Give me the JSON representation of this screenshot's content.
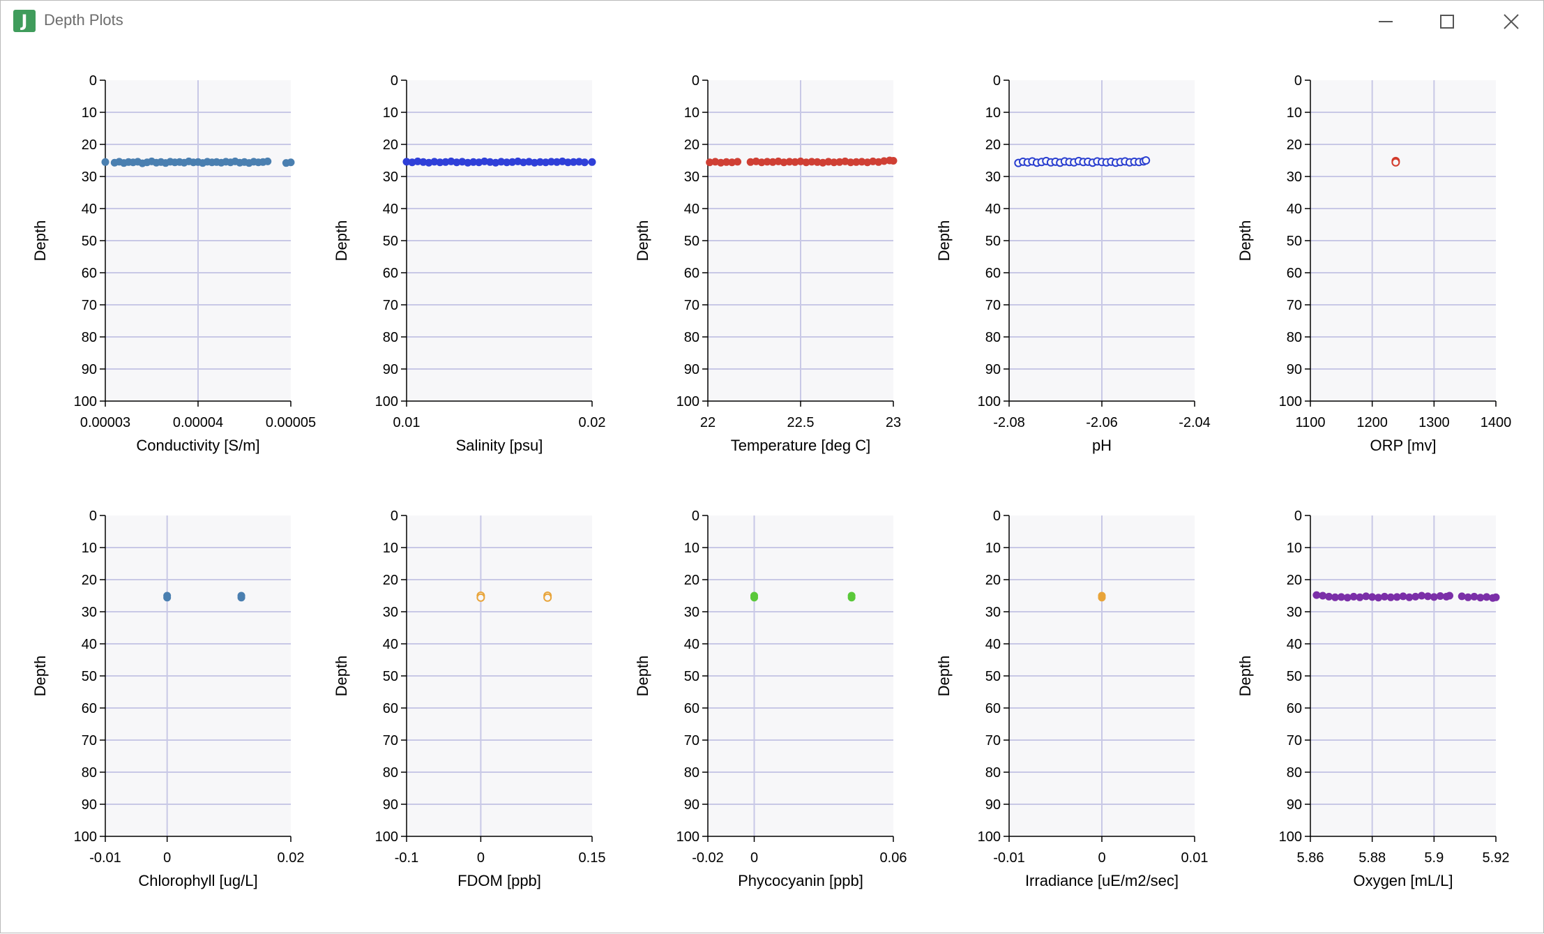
{
  "window": {
    "title": "Depth Plots",
    "icon": "J",
    "controls": [
      "minimize-icon",
      "maximize-icon",
      "close-icon"
    ]
  },
  "colors": {
    "plot_bg": "#f7f7f9",
    "grid": "#c8c8e6",
    "conductivity": "#4a7fb0",
    "salinity": "#2f3fd8",
    "temperature": "#cf3f34",
    "ph": "#2a3fd0",
    "orp": "#d23a2a",
    "chlorophyll": "#4a7fb0",
    "fdom": "#e8a43a",
    "phycocyanin": "#5ac83a",
    "irradiance": "#e8a43a",
    "oxygen": "#7b2fa8"
  },
  "chart_data": [
    {
      "type": "scatter",
      "xlabel": "Conductivity [S/m]",
      "ylabel": "Depth",
      "xlim": [
        3e-05,
        5e-05
      ],
      "xticks": [
        "0.00003",
        "0.00004",
        "0.00005"
      ],
      "ylim": [
        100,
        0
      ],
      "yticks": [
        "0",
        "10",
        "20",
        "30",
        "40",
        "50",
        "60",
        "70",
        "80",
        "90",
        "100"
      ],
      "grid": true,
      "color": "conductivity",
      "marker": "filled",
      "points": [
        [
          3e-05,
          25.5
        ],
        [
          3.1e-05,
          25.7
        ],
        [
          3.15e-05,
          25.4
        ],
        [
          3.2e-05,
          25.8
        ],
        [
          3.25e-05,
          25.5
        ],
        [
          3.3e-05,
          25.6
        ],
        [
          3.35e-05,
          25.4
        ],
        [
          3.4e-05,
          25.9
        ],
        [
          3.45e-05,
          25.6
        ],
        [
          3.5e-05,
          25.3
        ],
        [
          3.55e-05,
          25.7
        ],
        [
          3.6e-05,
          25.5
        ],
        [
          3.65e-05,
          25.8
        ],
        [
          3.7e-05,
          25.4
        ],
        [
          3.75e-05,
          25.6
        ],
        [
          3.8e-05,
          25.5
        ],
        [
          3.85e-05,
          25.7
        ],
        [
          3.9e-05,
          25.3
        ],
        [
          3.95e-05,
          25.6
        ],
        [
          4e-05,
          25.5
        ],
        [
          4.05e-05,
          25.8
        ],
        [
          4.1e-05,
          25.4
        ],
        [
          4.15e-05,
          25.6
        ],
        [
          4.2e-05,
          25.5
        ],
        [
          4.25e-05,
          25.7
        ],
        [
          4.3e-05,
          25.4
        ],
        [
          4.35e-05,
          25.6
        ],
        [
          4.4e-05,
          25.3
        ],
        [
          4.45e-05,
          25.7
        ],
        [
          4.5e-05,
          25.5
        ],
        [
          4.55e-05,
          25.8
        ],
        [
          4.6e-05,
          25.4
        ],
        [
          4.65e-05,
          25.6
        ],
        [
          4.7e-05,
          25.5
        ],
        [
          4.75e-05,
          25.3
        ],
        [
          4.95e-05,
          25.8
        ],
        [
          5e-05,
          25.6
        ]
      ]
    },
    {
      "type": "scatter",
      "xlabel": "Salinity [psu]",
      "ylabel": "Depth",
      "xlim": [
        0.01,
        0.02
      ],
      "xticks": [
        "0.01",
        "0.02"
      ],
      "ylim": [
        100,
        0
      ],
      "yticks": [
        "0",
        "10",
        "20",
        "30",
        "40",
        "50",
        "60",
        "70",
        "80",
        "90",
        "100"
      ],
      "grid": true,
      "color": "salinity",
      "marker": "filled",
      "points": [
        [
          0.01,
          25.4
        ],
        [
          0.0103,
          25.6
        ],
        [
          0.0106,
          25.3
        ],
        [
          0.0109,
          25.5
        ],
        [
          0.0112,
          25.7
        ],
        [
          0.0115,
          25.4
        ],
        [
          0.0118,
          25.6
        ],
        [
          0.0121,
          25.5
        ],
        [
          0.0124,
          25.3
        ],
        [
          0.0127,
          25.6
        ],
        [
          0.013,
          25.4
        ],
        [
          0.0133,
          25.7
        ],
        [
          0.0136,
          25.5
        ],
        [
          0.0139,
          25.6
        ],
        [
          0.0142,
          25.3
        ],
        [
          0.0145,
          25.5
        ],
        [
          0.0148,
          25.7
        ],
        [
          0.0151,
          25.4
        ],
        [
          0.0154,
          25.6
        ],
        [
          0.0157,
          25.5
        ],
        [
          0.016,
          25.3
        ],
        [
          0.0163,
          25.6
        ],
        [
          0.0166,
          25.4
        ],
        [
          0.0169,
          25.7
        ],
        [
          0.0172,
          25.5
        ],
        [
          0.0175,
          25.6
        ],
        [
          0.0178,
          25.4
        ],
        [
          0.0181,
          25.5
        ],
        [
          0.0184,
          25.3
        ],
        [
          0.0187,
          25.6
        ],
        [
          0.019,
          25.5
        ],
        [
          0.0193,
          25.4
        ],
        [
          0.0196,
          25.6
        ],
        [
          0.02,
          25.5
        ]
      ]
    },
    {
      "type": "scatter",
      "xlabel": "Temperature [deg C]",
      "ylabel": "Depth",
      "xlim": [
        22,
        23
      ],
      "xticks": [
        "22",
        "22.5",
        "23"
      ],
      "ylim": [
        100,
        0
      ],
      "yticks": [
        "0",
        "10",
        "20",
        "30",
        "40",
        "50",
        "60",
        "70",
        "80",
        "90",
        "100"
      ],
      "grid": true,
      "color": "temperature",
      "marker": "filled",
      "points": [
        [
          22.01,
          25.6
        ],
        [
          22.04,
          25.4
        ],
        [
          22.07,
          25.7
        ],
        [
          22.1,
          25.5
        ],
        [
          22.13,
          25.6
        ],
        [
          22.16,
          25.4
        ],
        [
          22.23,
          25.5
        ],
        [
          22.26,
          25.3
        ],
        [
          22.29,
          25.6
        ],
        [
          22.32,
          25.4
        ],
        [
          22.35,
          25.5
        ],
        [
          22.38,
          25.3
        ],
        [
          22.41,
          25.6
        ],
        [
          22.44,
          25.4
        ],
        [
          22.47,
          25.5
        ],
        [
          22.5,
          25.3
        ],
        [
          22.53,
          25.6
        ],
        [
          22.56,
          25.4
        ],
        [
          22.59,
          25.5
        ],
        [
          22.62,
          25.7
        ],
        [
          22.65,
          25.4
        ],
        [
          22.68,
          25.6
        ],
        [
          22.71,
          25.5
        ],
        [
          22.74,
          25.3
        ],
        [
          22.77,
          25.6
        ],
        [
          22.8,
          25.5
        ],
        [
          22.83,
          25.4
        ],
        [
          22.86,
          25.6
        ],
        [
          22.89,
          25.3
        ],
        [
          22.92,
          25.5
        ],
        [
          22.95,
          25.2
        ],
        [
          22.98,
          25.0
        ],
        [
          23.0,
          25.1
        ]
      ]
    },
    {
      "type": "scatter",
      "xlabel": "pH",
      "ylabel": "Depth",
      "xlim": [
        -2.08,
        -2.04
      ],
      "xticks": [
        "-2.08",
        "-2.06",
        "-2.04"
      ],
      "ylim": [
        100,
        0
      ],
      "yticks": [
        "0",
        "10",
        "20",
        "30",
        "40",
        "50",
        "60",
        "70",
        "80",
        "90",
        "100"
      ],
      "grid": true,
      "color": "ph",
      "marker": "hollow",
      "points": [
        [
          -2.078,
          25.8
        ],
        [
          -2.077,
          25.4
        ],
        [
          -2.076,
          25.6
        ],
        [
          -2.075,
          25.3
        ],
        [
          -2.074,
          25.7
        ],
        [
          -2.073,
          25.5
        ],
        [
          -2.072,
          25.2
        ],
        [
          -2.071,
          25.6
        ],
        [
          -2.07,
          25.4
        ],
        [
          -2.069,
          25.7
        ],
        [
          -2.068,
          25.3
        ],
        [
          -2.067,
          25.5
        ],
        [
          -2.066,
          25.6
        ],
        [
          -2.065,
          25.2
        ],
        [
          -2.064,
          25.5
        ],
        [
          -2.063,
          25.4
        ],
        [
          -2.062,
          25.7
        ],
        [
          -2.061,
          25.3
        ],
        [
          -2.06,
          25.5
        ],
        [
          -2.059,
          25.6
        ],
        [
          -2.058,
          25.4
        ],
        [
          -2.057,
          25.7
        ],
        [
          -2.056,
          25.5
        ],
        [
          -2.055,
          25.3
        ],
        [
          -2.054,
          25.6
        ],
        [
          -2.053,
          25.4
        ],
        [
          -2.052,
          25.5
        ],
        [
          -2.051,
          25.3
        ],
        [
          -2.0505,
          25.0
        ]
      ]
    },
    {
      "type": "scatter",
      "xlabel": "ORP [mv]",
      "ylabel": "Depth",
      "xlim": [
        1100,
        1400
      ],
      "xticks": [
        "1100",
        "1200",
        "1300",
        "1400"
      ],
      "ylim": [
        100,
        0
      ],
      "yticks": [
        "0",
        "10",
        "20",
        "30",
        "40",
        "50",
        "60",
        "70",
        "80",
        "90",
        "100"
      ],
      "grid": true,
      "color": "orp",
      "marker": "hollow",
      "points": [
        [
          1238,
          25.2
        ],
        [
          1238,
          25.6
        ]
      ]
    },
    {
      "type": "scatter",
      "xlabel": "Chlorophyll [ug/L]",
      "ylabel": "Depth",
      "xlim": [
        -0.01,
        0.02
      ],
      "xticks": [
        "-0.01",
        "0",
        "0.02"
      ],
      "ylim": [
        100,
        0
      ],
      "yticks": [
        "0",
        "10",
        "20",
        "30",
        "40",
        "50",
        "60",
        "70",
        "80",
        "90",
        "100"
      ],
      "grid": true,
      "color": "chlorophyll",
      "marker": "filled",
      "points": [
        [
          0,
          25.0
        ],
        [
          0,
          25.6
        ],
        [
          0.012,
          25.0
        ],
        [
          0.012,
          25.6
        ]
      ]
    },
    {
      "type": "scatter",
      "xlabel": "FDOM [ppb]",
      "ylabel": "Depth",
      "xlim": [
        -0.1,
        0.15
      ],
      "xticks": [
        "-0.1",
        "0",
        "0.15"
      ],
      "ylim": [
        100,
        0
      ],
      "yticks": [
        "0",
        "10",
        "20",
        "30",
        "40",
        "50",
        "60",
        "70",
        "80",
        "90",
        "100"
      ],
      "grid": true,
      "color": "fdom",
      "marker": "hollow",
      "points": [
        [
          0,
          25.0
        ],
        [
          0,
          25.6
        ],
        [
          0.09,
          25.0
        ],
        [
          0.09,
          25.6
        ]
      ]
    },
    {
      "type": "scatter",
      "xlabel": "Phycocyanin [ppb]",
      "ylabel": "Depth",
      "xlim": [
        -0.02,
        0.06
      ],
      "xticks": [
        "-0.02",
        "0",
        "0.06"
      ],
      "ylim": [
        100,
        0
      ],
      "yticks": [
        "0",
        "10",
        "20",
        "30",
        "40",
        "50",
        "60",
        "70",
        "80",
        "90",
        "100"
      ],
      "grid": true,
      "color": "phycocyanin",
      "marker": "filled",
      "points": [
        [
          0,
          25.0
        ],
        [
          0,
          25.6
        ],
        [
          0.042,
          25.0
        ],
        [
          0.042,
          25.6
        ]
      ]
    },
    {
      "type": "scatter",
      "xlabel": "Irradiance [uE/m2/sec]",
      "ylabel": "Depth",
      "xlim": [
        -0.01,
        0.01
      ],
      "xticks": [
        "-0.01",
        "0",
        "0.01"
      ],
      "ylim": [
        100,
        0
      ],
      "yticks": [
        "0",
        "10",
        "20",
        "30",
        "40",
        "50",
        "60",
        "70",
        "80",
        "90",
        "100"
      ],
      "grid": true,
      "color": "irradiance",
      "marker": "filled",
      "points": [
        [
          0,
          25.0
        ],
        [
          0,
          25.6
        ]
      ]
    },
    {
      "type": "scatter",
      "xlabel": "Oxygen [mL/L]",
      "ylabel": "Depth",
      "xlim": [
        5.86,
        5.92
      ],
      "xticks": [
        "5.86",
        "5.88",
        "5.9",
        "5.92"
      ],
      "ylim": [
        100,
        0
      ],
      "yticks": [
        "0",
        "10",
        "20",
        "30",
        "40",
        "50",
        "60",
        "70",
        "80",
        "90",
        "100"
      ],
      "grid": true,
      "color": "oxygen",
      "marker": "filled",
      "points": [
        [
          5.862,
          24.8
        ],
        [
          5.864,
          25.0
        ],
        [
          5.866,
          25.3
        ],
        [
          5.868,
          25.5
        ],
        [
          5.87,
          25.4
        ],
        [
          5.872,
          25.6
        ],
        [
          5.874,
          25.3
        ],
        [
          5.876,
          25.5
        ],
        [
          5.878,
          25.2
        ],
        [
          5.88,
          25.4
        ],
        [
          5.882,
          25.6
        ],
        [
          5.884,
          25.3
        ],
        [
          5.886,
          25.5
        ],
        [
          5.888,
          25.4
        ],
        [
          5.89,
          25.2
        ],
        [
          5.892,
          25.5
        ],
        [
          5.894,
          25.3
        ],
        [
          5.896,
          25.0
        ],
        [
          5.898,
          25.2
        ],
        [
          5.9,
          25.4
        ],
        [
          5.902,
          25.1
        ],
        [
          5.904,
          25.3
        ],
        [
          5.905,
          25.0
        ],
        [
          5.909,
          25.2
        ],
        [
          5.911,
          25.5
        ],
        [
          5.913,
          25.3
        ],
        [
          5.915,
          25.6
        ],
        [
          5.917,
          25.4
        ],
        [
          5.919,
          25.7
        ],
        [
          5.92,
          25.5
        ]
      ]
    }
  ]
}
